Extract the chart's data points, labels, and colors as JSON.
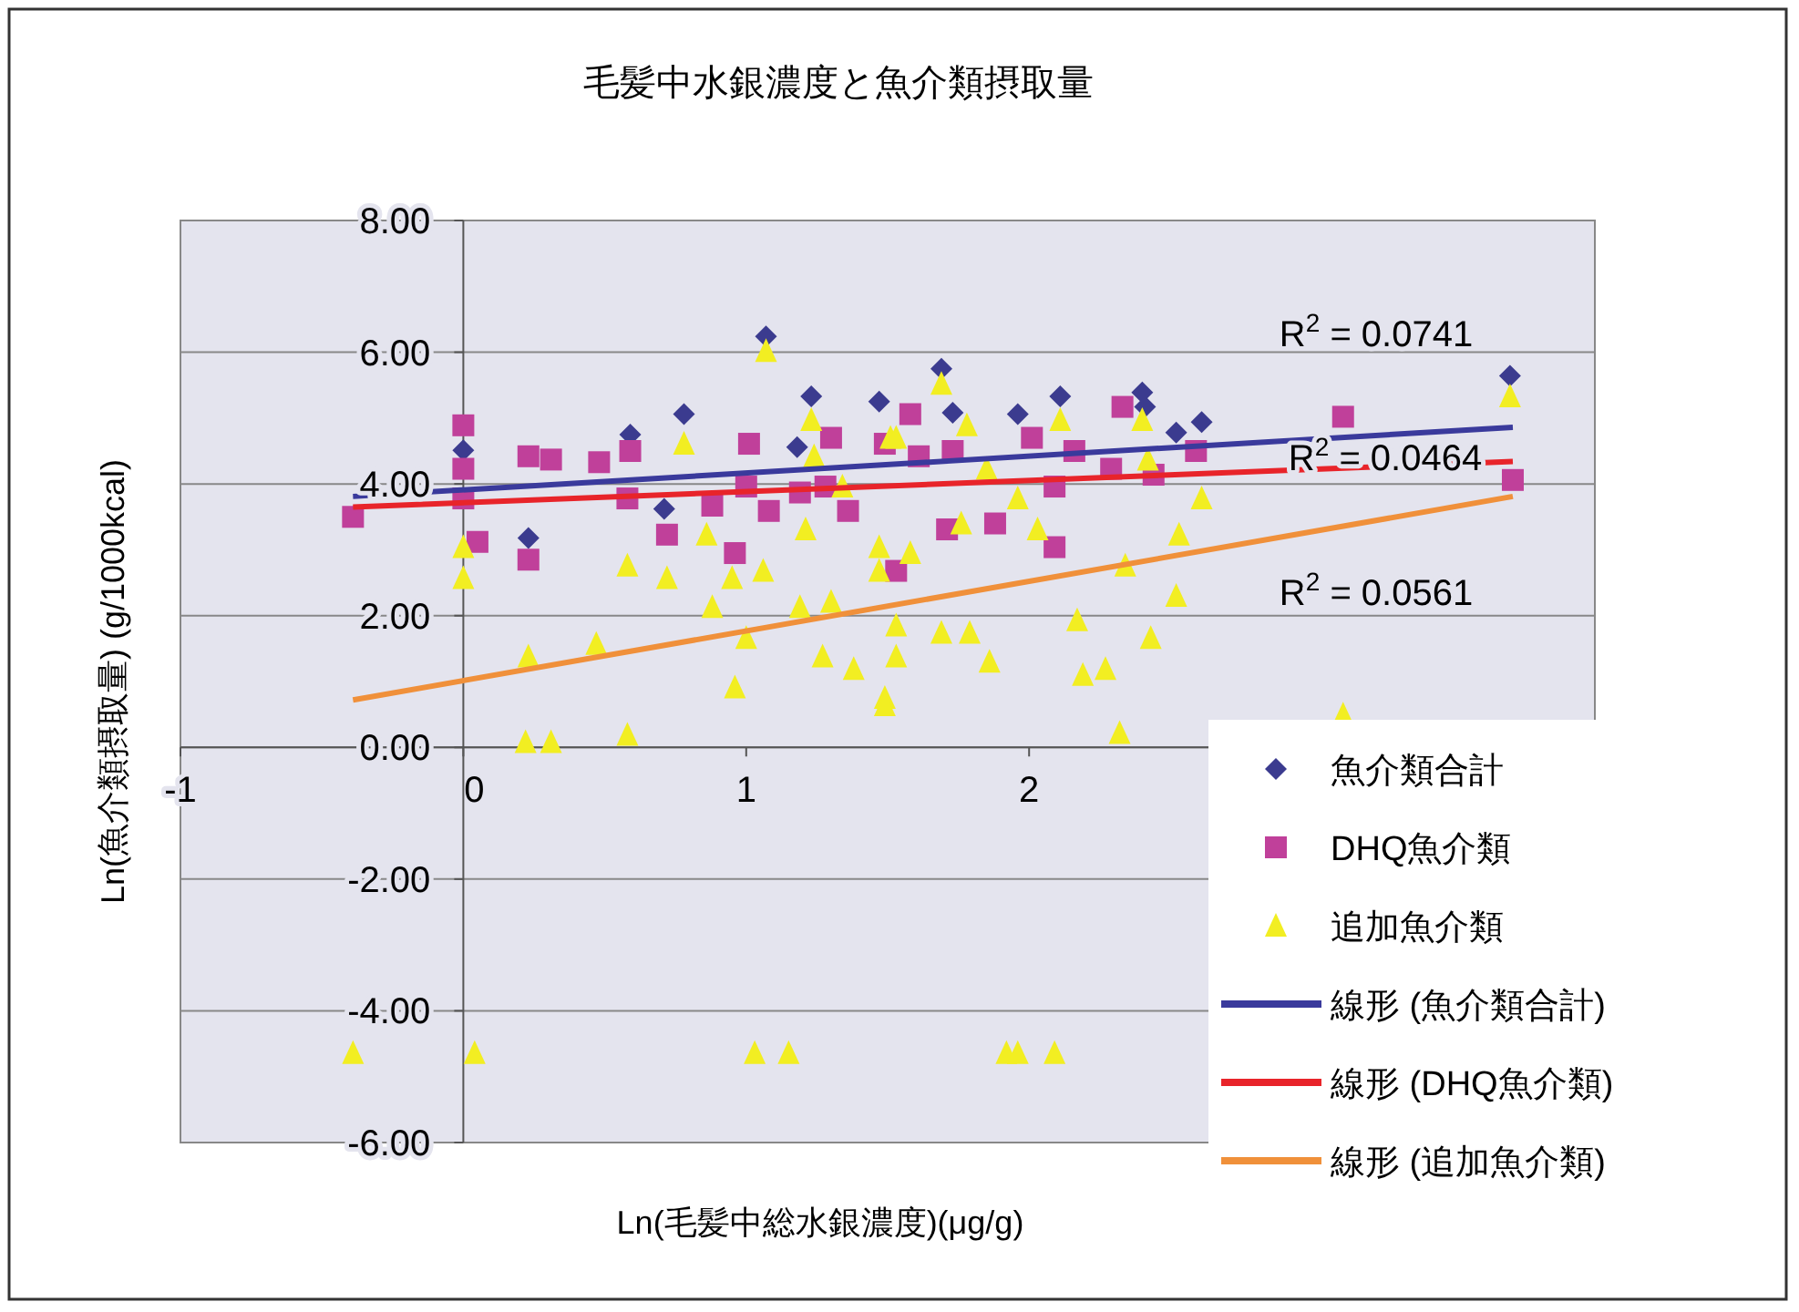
{
  "chart_data": {
    "type": "scatter",
    "title": "毛髪中水銀濃度と魚介類摂取量",
    "xlabel": "Ln(毛髪中総水銀濃度)(μg/g)",
    "ylabel": "Ln(魚介類摂取量) (g/1000kcal)",
    "xlim": [
      -1,
      4
    ],
    "xticks": [
      -1,
      0,
      1,
      2
    ],
    "ylim": [
      -6,
      8
    ],
    "yticks": [
      {
        "value": -6,
        "label": "-6.00"
      },
      {
        "value": -4,
        "label": "-4.00"
      },
      {
        "value": -2,
        "label": "-2.00"
      },
      {
        "value": 0,
        "label": "0.00"
      },
      {
        "value": 2,
        "label": "2.00"
      },
      {
        "value": 4,
        "label": "4.00"
      },
      {
        "value": 6,
        "label": "6.00"
      },
      {
        "value": 8,
        "label": "8.00"
      }
    ],
    "grid": "y",
    "legend": "bottom right",
    "annotations": [
      "R$^{2}$ = 0.0741",
      "R$^{2}$ = 0.0464",
      "R$^{2}$ = 0.0561"
    ],
    "series": [
      {
        "name": "魚介類合計",
        "type": "scatter",
        "marker": "diamond",
        "color": "#3b3b8f",
        "x": [
          0.0,
          0.23,
          0.59,
          0.78,
          0.71,
          1.07,
          1.23,
          1.47,
          1.18,
          1.6,
          1.69,
          2.11,
          2.4,
          2.61,
          1.96,
          1.73,
          3.7,
          2.52,
          2.41
        ],
        "values": [
          4.51,
          3.18,
          4.75,
          5.06,
          3.62,
          6.24,
          5.33,
          5.25,
          4.56,
          null,
          5.75,
          5.33,
          5.39,
          4.94,
          5.06,
          5.08,
          5.64,
          4.78,
          5.17
        ]
      },
      {
        "name": "DHQ魚介類",
        "type": "scatter",
        "marker": "square",
        "color": "#c0409a",
        "x": [
          -0.39,
          0.0,
          0.0,
          0.0,
          0.05,
          0.23,
          0.23,
          0.31,
          0.48,
          0.59,
          0.58,
          0.72,
          0.96,
          0.88,
          1.01,
          1.0,
          1.08,
          1.19,
          1.3,
          1.28,
          1.36,
          1.47,
          1.58,
          1.61,
          1.58,
          1.49,
          1.73,
          1.88,
          2.01,
          2.09,
          2.16,
          2.29,
          2.33,
          2.44,
          2.59,
          3.11,
          3.71,
          1.88,
          1.71,
          2.09,
          1.53
        ],
        "values": [
          3.5,
          4.89,
          4.23,
          3.78,
          3.12,
          2.85,
          4.42,
          4.37,
          4.33,
          4.5,
          3.78,
          3.23,
          2.95,
          3.67,
          4.61,
          3.96,
          3.59,
          3.87,
          4.7,
          3.96,
          3.59,
          null,
          null,
          4.42,
          5.06,
          4.61,
          4.5,
          null,
          4.7,
          3.96,
          4.5,
          4.23,
          5.17,
          4.14,
          4.5,
          5.02,
          4.06,
          3.4,
          3.31,
          3.04,
          2.68
        ]
      },
      {
        "name": "追加魚介類",
        "type": "scatter",
        "marker": "triangle",
        "color": "#f2ee22",
        "x": [
          0.0,
          0.0,
          0.23,
          0.22,
          0.31,
          0.58,
          0.47,
          0.58,
          0.72,
          0.78,
          0.86,
          0.88,
          0.95,
          0.96,
          1.0,
          1.07,
          1.06,
          1.19,
          1.21,
          1.23,
          1.24,
          1.27,
          1.3,
          1.34,
          1.38,
          1.47,
          1.49,
          1.51,
          1.53,
          1.58,
          1.53,
          1.69,
          1.78,
          1.85,
          1.76,
          1.96,
          2.03,
          2.11,
          2.4,
          2.42,
          2.61,
          2.53,
          2.52,
          2.34,
          2.17,
          2.19,
          2.27,
          2.43,
          2.32,
          3.11,
          3.7,
          1.53,
          1.69,
          1.79,
          1.86,
          1.49,
          1.47,
          -0.39,
          0.04,
          1.03,
          1.15,
          1.92,
          1.96,
          2.09
        ],
        "values": [
          3.04,
          2.57,
          1.38,
          0.08,
          0.08,
          0.19,
          1.57,
          2.76,
          2.57,
          4.61,
          3.23,
          2.13,
          2.57,
          0.91,
          1.66,
          6.02,
          2.68,
          2.13,
          3.31,
          4.97,
          4.42,
          1.38,
          2.21,
          3.96,
          1.19,
          3.04,
          0.75,
          4.7,
          1.85,
          2.95,
          4.7,
          5.52,
          4.89,
          4.23,
          3.4,
          3.78,
          3.31,
          4.97,
          4.97,
          4.37,
          3.78,
          3.23,
          2.3,
          2.76,
          1.93,
          1.1,
          1.19,
          1.66,
          0.22,
          0.5,
          5.33,
          1.38,
          1.74,
          1.74,
          1.3,
          0.64,
          2.68,
          -4.64,
          -4.64,
          -4.64,
          -4.64,
          -4.64,
          -4.64,
          -4.64
        ]
      },
      {
        "name": "線形 (魚介類合計)",
        "type": "line",
        "marker": "none",
        "line_style": "solid",
        "color": "#3a3a9c",
        "x": [
          -0.39,
          3.71
        ],
        "values": [
          3.81,
          4.86
        ]
      },
      {
        "name": "線形 (DHQ魚介類)",
        "type": "line",
        "marker": "none",
        "line_style": "solid",
        "color": "#e8242a",
        "x": [
          -0.39,
          3.71
        ],
        "values": [
          3.65,
          4.34
        ]
      },
      {
        "name": "線形 (追加魚介類)",
        "type": "line",
        "marker": "none",
        "line_style": "solid",
        "color": "#f0903a",
        "x": [
          -0.39,
          3.71
        ],
        "values": [
          0.72,
          3.81
        ]
      }
    ]
  }
}
